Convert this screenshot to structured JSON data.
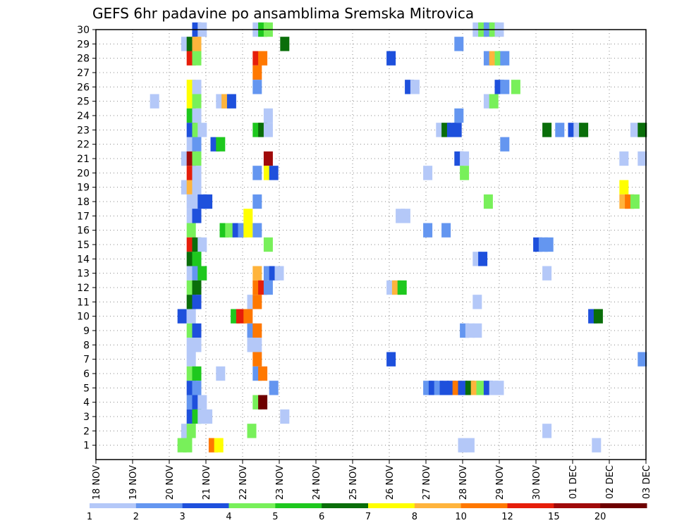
{
  "chart_data": {
    "type": "heatmap",
    "title": "GEFS 6hr padavine po ansamblima Sremska Mitrovica",
    "x_ticks": [
      "18 NOV",
      "19 NOV",
      "20 NOV",
      "21 NOV",
      "22 NOV",
      "23 NOV",
      "24 NOV",
      "25 NOV",
      "26 NOV",
      "27 NOV",
      "28 NOV",
      "29 NOV",
      "30 NOV",
      "01 DEC",
      "02 DEC",
      "03 DEC"
    ],
    "y_ticks": [
      "1",
      "2",
      "3",
      "4",
      "5",
      "6",
      "7",
      "8",
      "9",
      "10",
      "11",
      "12",
      "13",
      "14",
      "15",
      "16",
      "17",
      "18",
      "19",
      "20",
      "21",
      "22",
      "23",
      "24",
      "25",
      "26",
      "27",
      "28",
      "29",
      "30"
    ],
    "xlim_days": [
      0,
      15
    ],
    "ylim": [
      0,
      30
    ],
    "grid": true,
    "legend": {
      "position": "bottom",
      "labels": [
        "1",
        "2",
        "3",
        "4",
        "5",
        "6",
        "7",
        "8",
        "10",
        "12",
        "15",
        "20"
      ],
      "colors": [
        "#b4c8f8",
        "#6496f0",
        "#1e50dc",
        "#78f05a",
        "#1ec81e",
        "#0a6e0a",
        "#ffff00",
        "#ffb43c",
        "#ff7800",
        "#e61e0a",
        "#a00a0a",
        "#6e0000"
      ]
    },
    "cells": [
      [
        30,
        2.75,
        3
      ],
      [
        30,
        2.9,
        1
      ],
      [
        30,
        4.4,
        1
      ],
      [
        30,
        4.55,
        5
      ],
      [
        30,
        4.7,
        4
      ],
      [
        30,
        10.4,
        1
      ],
      [
        30,
        10.55,
        4
      ],
      [
        30,
        10.7,
        2
      ],
      [
        30,
        10.85,
        4
      ],
      [
        30,
        11.0,
        1
      ],
      [
        29,
        2.45,
        1
      ],
      [
        29,
        2.6,
        6
      ],
      [
        29,
        2.75,
        8
      ],
      [
        29,
        5.15,
        6
      ],
      [
        29,
        9.9,
        2
      ],
      [
        28,
        2.6,
        10
      ],
      [
        28,
        2.75,
        4
      ],
      [
        28,
        4.4,
        10
      ],
      [
        28,
        4.55,
        9
      ],
      [
        28,
        8.05,
        3
      ],
      [
        28,
        10.7,
        2
      ],
      [
        28,
        10.85,
        8
      ],
      [
        28,
        11.0,
        4
      ],
      [
        28,
        11.15,
        2
      ],
      [
        27,
        4.4,
        9
      ],
      [
        26,
        2.6,
        7
      ],
      [
        26,
        2.75,
        1
      ],
      [
        26,
        4.4,
        2
      ],
      [
        26,
        8.55,
        3
      ],
      [
        26,
        8.7,
        1
      ],
      [
        26,
        11.0,
        3
      ],
      [
        26,
        11.15,
        2
      ],
      [
        26,
        11.45,
        4
      ],
      [
        25,
        1.6,
        1
      ],
      [
        25,
        2.6,
        7
      ],
      [
        25,
        2.75,
        4
      ],
      [
        25,
        3.4,
        1
      ],
      [
        25,
        3.55,
        8
      ],
      [
        25,
        3.7,
        3
      ],
      [
        25,
        10.7,
        1
      ],
      [
        25,
        10.85,
        4
      ],
      [
        24,
        2.6,
        5
      ],
      [
        24,
        2.75,
        1
      ],
      [
        24,
        4.7,
        1
      ],
      [
        24,
        9.9,
        2
      ],
      [
        23,
        2.6,
        3
      ],
      [
        23,
        2.75,
        4
      ],
      [
        23,
        2.9,
        1
      ],
      [
        23,
        4.4,
        5
      ],
      [
        23,
        4.55,
        6
      ],
      [
        23,
        4.7,
        1
      ],
      [
        23,
        9.4,
        1
      ],
      [
        23,
        9.55,
        6
      ],
      [
        23,
        9.7,
        3
      ],
      [
        23,
        9.85,
        3
      ],
      [
        23,
        12.3,
        6
      ],
      [
        23,
        12.65,
        2
      ],
      [
        23,
        13.0,
        3
      ],
      [
        23,
        13.15,
        1
      ],
      [
        23,
        13.3,
        6
      ],
      [
        23,
        14.7,
        1
      ],
      [
        23,
        14.9,
        6
      ],
      [
        22,
        2.6,
        1
      ],
      [
        22,
        2.75,
        2
      ],
      [
        22,
        3.25,
        3
      ],
      [
        22,
        3.4,
        5
      ],
      [
        22,
        11.15,
        2
      ],
      [
        21,
        2.45,
        1
      ],
      [
        21,
        2.6,
        11
      ],
      [
        21,
        2.75,
        4
      ],
      [
        21,
        4.7,
        11
      ],
      [
        21,
        9.9,
        3
      ],
      [
        21,
        10.05,
        1
      ],
      [
        21,
        14.4,
        1
      ],
      [
        21,
        14.9,
        1
      ],
      [
        20,
        2.6,
        10
      ],
      [
        20,
        2.75,
        1
      ],
      [
        20,
        4.4,
        2
      ],
      [
        20,
        4.7,
        7
      ],
      [
        20,
        4.85,
        3
      ],
      [
        20,
        9.05,
        1
      ],
      [
        20,
        10.05,
        4
      ],
      [
        19,
        2.45,
        1
      ],
      [
        19,
        2.6,
        8
      ],
      [
        19,
        2.75,
        1
      ],
      [
        19,
        14.4,
        7
      ],
      [
        18,
        2.6,
        1
      ],
      [
        18,
        2.75,
        1
      ],
      [
        18,
        2.9,
        3
      ],
      [
        18,
        3.05,
        3
      ],
      [
        18,
        4.4,
        2
      ],
      [
        18,
        10.7,
        4
      ],
      [
        18,
        14.4,
        8
      ],
      [
        18,
        14.55,
        9
      ],
      [
        18,
        14.7,
        4
      ],
      [
        17,
        2.6,
        1
      ],
      [
        17,
        2.75,
        3
      ],
      [
        17,
        4.15,
        7
      ],
      [
        17,
        8.3,
        1
      ],
      [
        17,
        8.45,
        1
      ],
      [
        16,
        2.6,
        4
      ],
      [
        16,
        3.5,
        5
      ],
      [
        16,
        3.65,
        4
      ],
      [
        16,
        3.85,
        3
      ],
      [
        16,
        4.0,
        2
      ],
      [
        16,
        4.15,
        7
      ],
      [
        16,
        4.4,
        2
      ],
      [
        16,
        9.05,
        2
      ],
      [
        16,
        9.55,
        2
      ],
      [
        15,
        2.6,
        10
      ],
      [
        15,
        2.75,
        6
      ],
      [
        15,
        2.9,
        1
      ],
      [
        15,
        4.7,
        4
      ],
      [
        15,
        12.05,
        3
      ],
      [
        15,
        12.2,
        2
      ],
      [
        15,
        12.35,
        2
      ],
      [
        14,
        2.6,
        6
      ],
      [
        14,
        2.75,
        5
      ],
      [
        14,
        10.4,
        1
      ],
      [
        14,
        10.55,
        3
      ],
      [
        13,
        2.6,
        1
      ],
      [
        13,
        2.75,
        2
      ],
      [
        13,
        2.9,
        5
      ],
      [
        13,
        4.4,
        8
      ],
      [
        13,
        4.7,
        2
      ],
      [
        13,
        4.85,
        3
      ],
      [
        13,
        5.0,
        1
      ],
      [
        13,
        12.3,
        1
      ],
      [
        12,
        2.6,
        4
      ],
      [
        12,
        2.75,
        6
      ],
      [
        12,
        4.4,
        9
      ],
      [
        12,
        4.55,
        10
      ],
      [
        12,
        4.7,
        2
      ],
      [
        12,
        8.05,
        1
      ],
      [
        12,
        8.2,
        8
      ],
      [
        12,
        8.35,
        5
      ],
      [
        11,
        2.6,
        6
      ],
      [
        11,
        2.75,
        3
      ],
      [
        11,
        4.25,
        1
      ],
      [
        11,
        4.4,
        9
      ],
      [
        11,
        10.4,
        1
      ],
      [
        10,
        2.35,
        3
      ],
      [
        10,
        2.6,
        1
      ],
      [
        10,
        3.8,
        5
      ],
      [
        10,
        3.95,
        10
      ],
      [
        10,
        4.15,
        9
      ],
      [
        10,
        13.55,
        3
      ],
      [
        10,
        13.7,
        6
      ],
      [
        9,
        2.6,
        4
      ],
      [
        9,
        2.75,
        3
      ],
      [
        9,
        4.25,
        2
      ],
      [
        9,
        4.4,
        9
      ],
      [
        9,
        10.05,
        2
      ],
      [
        9,
        10.2,
        1
      ],
      [
        9,
        10.4,
        1
      ],
      [
        8,
        2.6,
        1
      ],
      [
        8,
        2.75,
        1
      ],
      [
        8,
        4.25,
        1
      ],
      [
        8,
        4.4,
        1
      ],
      [
        7,
        2.6,
        1
      ],
      [
        7,
        4.4,
        9
      ],
      [
        7,
        8.05,
        3
      ],
      [
        7,
        14.9,
        2
      ],
      [
        6,
        2.6,
        4
      ],
      [
        6,
        2.75,
        5
      ],
      [
        6,
        3.4,
        1
      ],
      [
        6,
        4.4,
        2
      ],
      [
        6,
        4.55,
        9
      ],
      [
        5,
        2.6,
        3
      ],
      [
        5,
        2.75,
        2
      ],
      [
        5,
        4.85,
        2
      ],
      [
        5,
        9.05,
        2
      ],
      [
        5,
        9.2,
        3
      ],
      [
        5,
        9.35,
        2
      ],
      [
        5,
        9.5,
        3
      ],
      [
        5,
        9.7,
        3
      ],
      [
        5,
        9.85,
        9
      ],
      [
        5,
        10.0,
        3
      ],
      [
        5,
        10.2,
        6
      ],
      [
        5,
        10.35,
        8
      ],
      [
        5,
        10.5,
        4
      ],
      [
        5,
        10.7,
        3
      ],
      [
        5,
        10.85,
        1
      ],
      [
        5,
        11.0,
        1
      ],
      [
        4,
        2.6,
        2
      ],
      [
        4,
        2.75,
        3
      ],
      [
        4,
        2.9,
        1
      ],
      [
        4,
        4.4,
        4
      ],
      [
        4,
        4.55,
        12
      ],
      [
        3,
        2.6,
        3
      ],
      [
        3,
        2.75,
        5
      ],
      [
        3,
        2.9,
        1
      ],
      [
        3,
        3.05,
        1
      ],
      [
        3,
        5.15,
        1
      ],
      [
        2,
        2.45,
        1
      ],
      [
        2,
        2.6,
        4
      ],
      [
        2,
        4.25,
        4
      ],
      [
        2,
        12.3,
        1
      ],
      [
        1,
        2.35,
        4
      ],
      [
        1,
        2.5,
        4
      ],
      [
        1,
        3.2,
        9
      ],
      [
        1,
        3.35,
        7
      ],
      [
        1,
        10.0,
        1
      ],
      [
        1,
        10.2,
        1
      ],
      [
        1,
        13.65,
        1
      ]
    ]
  }
}
